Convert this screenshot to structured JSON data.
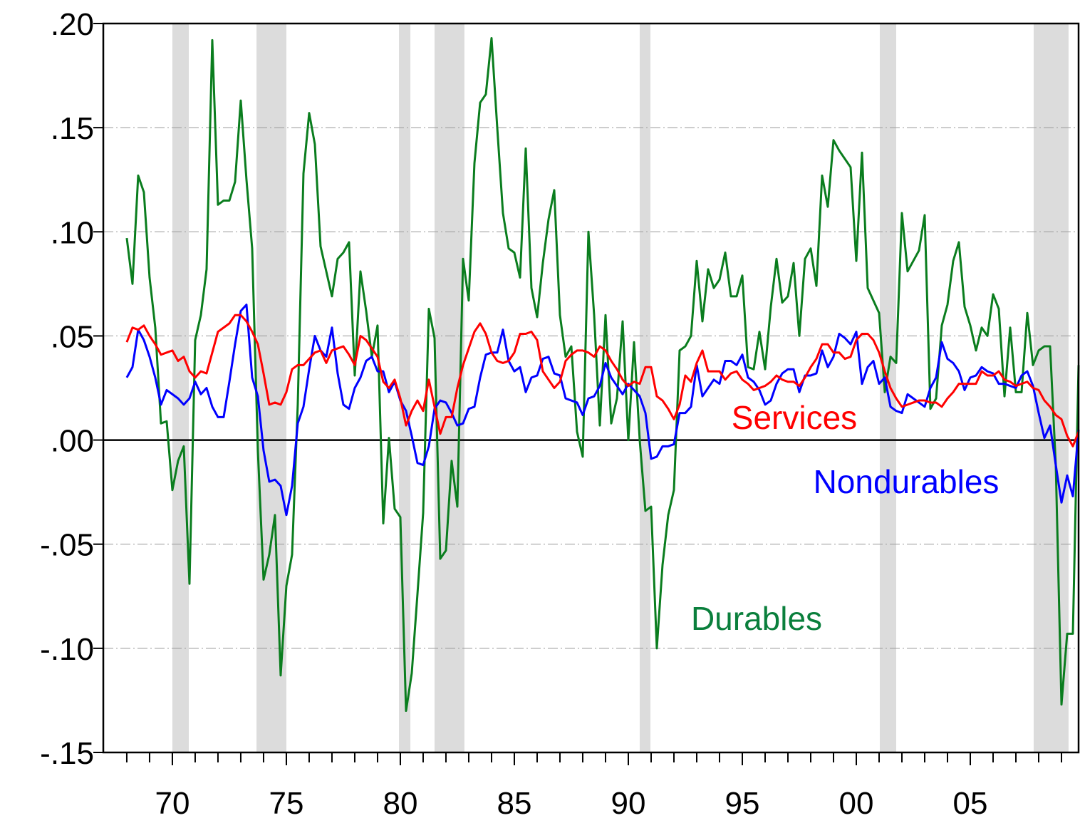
{
  "chart_data": {
    "type": "line",
    "x": [
      1968,
      1968.25,
      1968.5,
      1968.75,
      1969,
      1969.25,
      1969.5,
      1969.75,
      1970,
      1970.25,
      1970.5,
      1970.75,
      1971,
      1971.25,
      1971.5,
      1971.75,
      1972,
      1972.25,
      1972.5,
      1972.75,
      1973,
      1973.25,
      1973.5,
      1973.75,
      1974,
      1974.25,
      1974.5,
      1974.75,
      1975,
      1975.25,
      1975.5,
      1975.75,
      1976,
      1976.25,
      1976.5,
      1976.75,
      1977,
      1977.25,
      1977.5,
      1977.75,
      1978,
      1978.25,
      1978.5,
      1978.75,
      1979,
      1979.25,
      1979.5,
      1979.75,
      1980,
      1980.25,
      1980.5,
      1980.75,
      1981,
      1981.25,
      1981.5,
      1981.75,
      1982,
      1982.25,
      1982.5,
      1982.75,
      1983,
      1983.25,
      1983.5,
      1983.75,
      1984,
      1984.25,
      1984.5,
      1984.75,
      1985,
      1985.25,
      1985.5,
      1985.75,
      1986,
      1986.25,
      1986.5,
      1986.75,
      1987,
      1987.25,
      1987.5,
      1987.75,
      1988,
      1988.25,
      1988.5,
      1988.75,
      1989,
      1989.25,
      1989.5,
      1989.75,
      1990,
      1990.25,
      1990.5,
      1990.75,
      1991,
      1991.25,
      1991.5,
      1991.75,
      1992,
      1992.25,
      1992.5,
      1992.75,
      1993,
      1993.25,
      1993.5,
      1993.75,
      1994,
      1994.25,
      1994.5,
      1994.75,
      1995,
      1995.25,
      1995.5,
      1995.75,
      1996,
      1996.25,
      1996.5,
      1996.75,
      1997,
      1997.25,
      1997.5,
      1997.75,
      1998,
      1998.25,
      1998.5,
      1998.75,
      1999,
      1999.25,
      1999.5,
      1999.75,
      2000,
      2000.25,
      2000.5,
      2000.75,
      2001,
      2001.25,
      2001.5,
      2001.75,
      2002,
      2002.25,
      2002.5,
      2002.75,
      2003,
      2003.25,
      2003.5,
      2003.75,
      2004,
      2004.25,
      2004.5,
      2004.75,
      2005,
      2005.25,
      2005.5,
      2005.75,
      2006,
      2006.25,
      2006.5,
      2006.75,
      2007,
      2007.25,
      2007.5,
      2007.75,
      2008,
      2008.25,
      2008.5,
      2008.75,
      2009,
      2009.25,
      2009.5,
      2009.75
    ],
    "series": [
      {
        "name": "Durables",
        "color": "#0a7d1e",
        "label_color": "#0a7f3c",
        "values": [
          0.097,
          0.075,
          0.127,
          0.119,
          0.078,
          0.054,
          0.008,
          0.009,
          -0.024,
          -0.01,
          -0.003,
          -0.069,
          0.048,
          0.06,
          0.082,
          0.192,
          0.113,
          0.115,
          0.115,
          0.124,
          0.163,
          0.125,
          0.092,
          -0.005,
          -0.067,
          -0.055,
          -0.036,
          -0.113,
          -0.07,
          -0.055,
          0.017,
          0.128,
          0.157,
          0.142,
          0.093,
          0.081,
          0.069,
          0.087,
          0.09,
          0.095,
          0.031,
          0.081,
          0.062,
          0.04,
          0.055,
          -0.04,
          0.001,
          -0.033,
          -0.037,
          -0.13,
          -0.112,
          -0.074,
          -0.035,
          0.063,
          0.049,
          -0.057,
          -0.053,
          -0.01,
          -0.032,
          0.087,
          0.067,
          0.133,
          0.162,
          0.166,
          0.193,
          0.15,
          0.109,
          0.092,
          0.09,
          0.078,
          0.14,
          0.073,
          0.059,
          0.085,
          0.106,
          0.12,
          0.06,
          0.04,
          0.045,
          0.004,
          -0.008,
          0.1,
          0.06,
          0.007,
          0.06,
          0.008,
          0.02,
          0.057,
          0.0,
          0.047,
          0.0,
          -0.034,
          -0.032,
          -0.1,
          -0.06,
          -0.036,
          -0.024,
          0.043,
          0.045,
          0.05,
          0.086,
          0.057,
          0.082,
          0.073,
          0.077,
          0.09,
          0.069,
          0.069,
          0.079,
          0.035,
          0.034,
          0.052,
          0.034,
          0.064,
          0.087,
          0.066,
          0.069,
          0.085,
          0.05,
          0.087,
          0.092,
          0.074,
          0.127,
          0.112,
          0.144,
          0.139,
          0.135,
          0.131,
          0.086,
          0.138,
          0.073,
          0.067,
          0.061,
          0.023,
          0.04,
          0.037,
          0.109,
          0.081,
          0.086,
          0.091,
          0.108,
          0.015,
          0.02,
          0.055,
          0.065,
          0.086,
          0.095,
          0.064,
          0.055,
          0.043,
          0.054,
          0.05,
          0.07,
          0.063,
          0.021,
          0.054,
          0.023,
          0.023,
          0.061,
          0.036,
          0.043,
          0.045,
          0.045,
          -0.012,
          -0.127,
          -0.093,
          -0.093,
          0.036
        ]
      },
      {
        "name": "Nondurables",
        "color": "#0000ff",
        "label_color": "#0000ff",
        "values": [
          0.03,
          0.035,
          0.053,
          0.048,
          0.04,
          0.03,
          0.017,
          0.024,
          0.022,
          0.02,
          0.017,
          0.02,
          0.028,
          0.022,
          0.025,
          0.016,
          0.011,
          0.011,
          0.028,
          0.046,
          0.062,
          0.065,
          0.03,
          0.021,
          -0.005,
          -0.02,
          -0.019,
          -0.022,
          -0.036,
          -0.022,
          0.008,
          0.016,
          0.034,
          0.05,
          0.043,
          0.04,
          0.054,
          0.032,
          0.017,
          0.015,
          0.025,
          0.03,
          0.038,
          0.04,
          0.033,
          0.033,
          0.023,
          0.028,
          0.019,
          0.014,
          0.002,
          -0.011,
          -0.012,
          -0.003,
          0.015,
          0.019,
          0.018,
          0.013,
          0.007,
          0.008,
          0.015,
          0.016,
          0.03,
          0.041,
          0.042,
          0.042,
          0.053,
          0.038,
          0.033,
          0.035,
          0.023,
          0.03,
          0.031,
          0.039,
          0.04,
          0.032,
          0.031,
          0.02,
          0.019,
          0.018,
          0.012,
          0.02,
          0.021,
          0.026,
          0.037,
          0.03,
          0.026,
          0.022,
          0.027,
          0.024,
          0.021,
          0.013,
          -0.009,
          -0.008,
          -0.003,
          -0.003,
          -0.002,
          0.013,
          0.013,
          0.016,
          0.036,
          0.021,
          0.025,
          0.029,
          0.027,
          0.038,
          0.038,
          0.036,
          0.041,
          0.03,
          0.028,
          0.024,
          0.017,
          0.019,
          0.027,
          0.032,
          0.034,
          0.034,
          0.023,
          0.031,
          0.031,
          0.032,
          0.043,
          0.035,
          0.04,
          0.051,
          0.049,
          0.046,
          0.052,
          0.027,
          0.035,
          0.038,
          0.027,
          0.03,
          0.016,
          0.014,
          0.013,
          0.022,
          0.02,
          0.018,
          0.016,
          0.025,
          0.03,
          0.047,
          0.039,
          0.037,
          0.033,
          0.024,
          0.03,
          0.031,
          0.035,
          0.033,
          0.032,
          0.027,
          0.027,
          0.026,
          0.025,
          0.031,
          0.033,
          0.026,
          0.013,
          0.001,
          0.007,
          -0.012,
          -0.03,
          -0.017,
          -0.027,
          0.005
        ]
      },
      {
        "name": "Services",
        "color": "#ff0000",
        "label_color": "#ff0000",
        "values": [
          0.047,
          0.054,
          0.053,
          0.055,
          0.05,
          0.046,
          0.041,
          0.042,
          0.043,
          0.038,
          0.04,
          0.033,
          0.03,
          0.033,
          0.032,
          0.042,
          0.052,
          0.054,
          0.056,
          0.06,
          0.06,
          0.057,
          0.052,
          0.046,
          0.032,
          0.017,
          0.018,
          0.017,
          0.023,
          0.034,
          0.036,
          0.036,
          0.039,
          0.042,
          0.043,
          0.037,
          0.043,
          0.044,
          0.045,
          0.041,
          0.036,
          0.05,
          0.048,
          0.044,
          0.04,
          0.028,
          0.025,
          0.029,
          0.02,
          0.007,
          0.014,
          0.019,
          0.014,
          0.029,
          0.016,
          0.003,
          0.011,
          0.011,
          0.025,
          0.036,
          0.044,
          0.052,
          0.056,
          0.051,
          0.042,
          0.038,
          0.037,
          0.038,
          0.042,
          0.051,
          0.051,
          0.052,
          0.048,
          0.033,
          0.029,
          0.025,
          0.028,
          0.038,
          0.041,
          0.043,
          0.043,
          0.042,
          0.04,
          0.045,
          0.043,
          0.038,
          0.034,
          0.029,
          0.026,
          0.028,
          0.027,
          0.035,
          0.035,
          0.021,
          0.019,
          0.015,
          0.01,
          0.017,
          0.031,
          0.028,
          0.037,
          0.043,
          0.033,
          0.033,
          0.033,
          0.029,
          0.032,
          0.033,
          0.029,
          0.027,
          0.024,
          0.025,
          0.026,
          0.028,
          0.031,
          0.029,
          0.028,
          0.028,
          0.026,
          0.03,
          0.035,
          0.039,
          0.046,
          0.046,
          0.042,
          0.042,
          0.039,
          0.04,
          0.048,
          0.051,
          0.051,
          0.048,
          0.042,
          0.033,
          0.025,
          0.02,
          0.016,
          0.017,
          0.018,
          0.019,
          0.019,
          0.018,
          0.018,
          0.016,
          0.02,
          0.023,
          0.027,
          0.027,
          0.027,
          0.027,
          0.033,
          0.031,
          0.031,
          0.033,
          0.029,
          0.028,
          0.026,
          0.027,
          0.028,
          0.025,
          0.024,
          0.019,
          0.016,
          0.012,
          0.01,
          0.002,
          -0.003,
          0.004
        ]
      }
    ],
    "recessions": [
      [
        1970,
        1970.72
      ],
      [
        1973.69,
        1975
      ],
      [
        1979.94,
        1980.44
      ],
      [
        1981.5,
        1982.81
      ],
      [
        1990.5,
        1990.97
      ],
      [
        2001.03,
        2001.75
      ],
      [
        2007.78,
        2009.31
      ]
    ],
    "xlim": [
      1966.97,
      2009.75
    ],
    "xticks": [
      {
        "value": 1970,
        "label": "70"
      },
      {
        "value": 1975,
        "label": "75"
      },
      {
        "value": 1980,
        "label": "80"
      },
      {
        "value": 1985,
        "label": "85"
      },
      {
        "value": 1990,
        "label": "90"
      },
      {
        "value": 1995,
        "label": "95"
      },
      {
        "value": 2000,
        "label": "00"
      },
      {
        "value": 2005,
        "label": "05"
      }
    ],
    "xminorticks": [
      1968,
      1969,
      1970,
      1971,
      1972,
      1973,
      1974,
      1975,
      1976,
      1977,
      1978,
      1979,
      1980,
      1981,
      1982,
      1983,
      1984,
      1985,
      1986,
      1987,
      1988,
      1989,
      1990,
      1991,
      1992,
      1993,
      1994,
      1995,
      1996,
      1997,
      1998,
      1999,
      2000,
      2001,
      2002,
      2003,
      2004,
      2005,
      2006,
      2007,
      2008,
      2009
    ],
    "ylim": [
      -0.15,
      0.2
    ],
    "yticks": [
      {
        "value": 0.2,
        "label": ".20"
      },
      {
        "value": 0.15,
        "label": ".15"
      },
      {
        "value": 0.1,
        "label": ".10"
      },
      {
        "value": 0.05,
        "label": ".05"
      },
      {
        "value": 0,
        "label": ".00"
      },
      {
        "value": -0.05,
        "label": "-.05"
      },
      {
        "value": -0.1,
        "label": "-.10"
      },
      {
        "value": -0.15,
        "label": "-.15"
      }
    ],
    "grid": true
  }
}
